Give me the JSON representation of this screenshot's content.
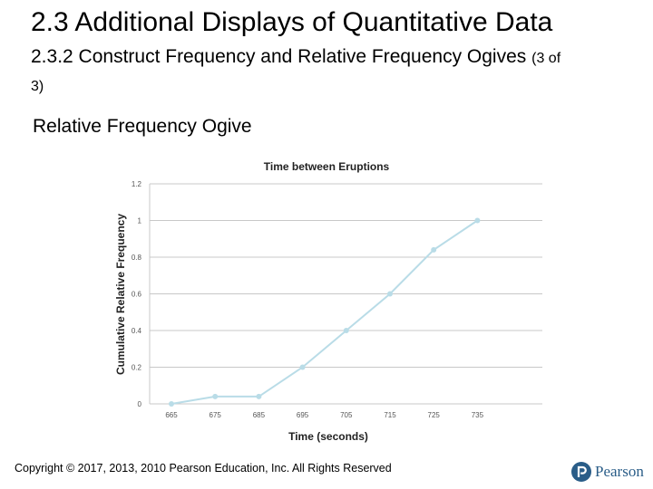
{
  "slide": {
    "title": "2.3 Additional Displays of Quantitative Data",
    "subtitle_main": "2.3.2 Construct Frequency and Relative Frequency Ogives",
    "subtitle_part": "(3 of 3)",
    "heading": "Relative Frequency Ogive",
    "footer": "Copyright © 2017, 2013, 2010 Pearson Education, Inc. All Rights Reserved",
    "logo_text": "Pearson"
  },
  "chart_data": {
    "type": "line",
    "title": "Time between Eruptions",
    "xlabel": "Time (seconds)",
    "ylabel": "Cumulative Relative Frequency",
    "categories": [
      "665",
      "675",
      "685",
      "695",
      "705",
      "715",
      "725",
      "735"
    ],
    "series": [
      {
        "values": [
          0,
          0.04,
          0.04,
          0.2,
          0.4,
          0.6,
          0.84,
          1.0
        ]
      }
    ],
    "ylim": [
      0,
      1.2
    ],
    "yticks": [
      "0",
      "0.2",
      "0.4",
      "0.6",
      "0.8",
      "1",
      "1.2"
    ],
    "grid": true,
    "line_color": "#b9dce7",
    "grid_color": "#c8c8c8"
  },
  "colors": {
    "brand": "#2a5d88"
  }
}
